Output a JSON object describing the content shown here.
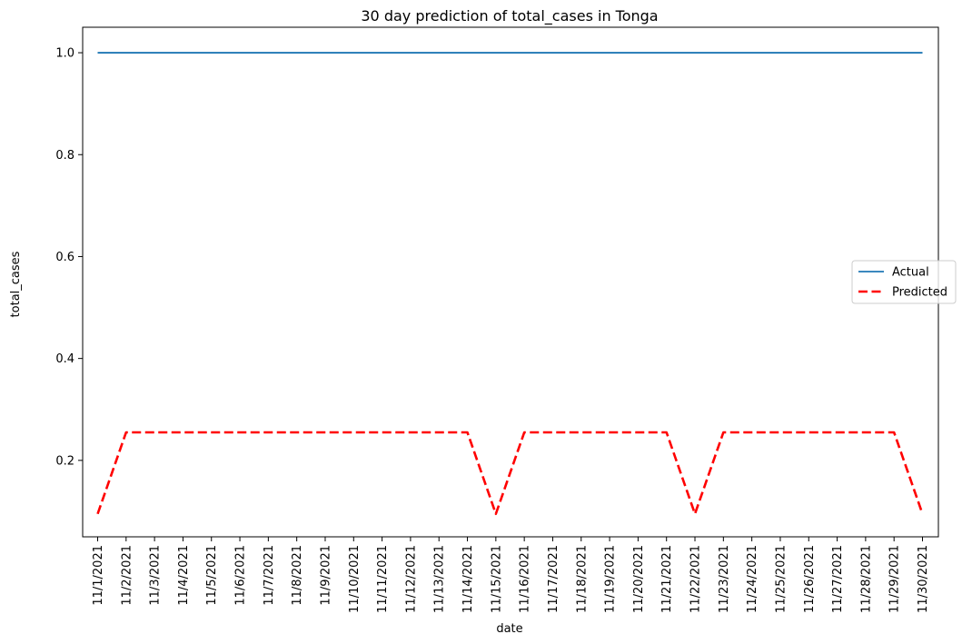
{
  "chart_data": {
    "type": "line",
    "title": "30 day prediction of total_cases in Tonga",
    "xlabel": "date",
    "ylabel": "total_cases",
    "x": [
      "11/1/2021",
      "11/2/2021",
      "11/3/2021",
      "11/4/2021",
      "11/5/2021",
      "11/6/2021",
      "11/7/2021",
      "11/8/2021",
      "11/9/2021",
      "11/10/2021",
      "11/11/2021",
      "11/12/2021",
      "11/13/2021",
      "11/14/2021",
      "11/15/2021",
      "11/16/2021",
      "11/17/2021",
      "11/18/2021",
      "11/19/2021",
      "11/20/2021",
      "11/21/2021",
      "11/22/2021",
      "11/23/2021",
      "11/24/2021",
      "11/25/2021",
      "11/26/2021",
      "11/27/2021",
      "11/28/2021",
      "11/29/2021",
      "11/30/2021"
    ],
    "ylim": [
      0.05,
      1.05
    ],
    "yticks": [
      0.2,
      0.4,
      0.6,
      0.8,
      1.0
    ],
    "ytick_labels": [
      "0.2",
      "0.4",
      "0.6",
      "0.8",
      "1.0"
    ],
    "grid": false,
    "legend_position": "center-right",
    "series": [
      {
        "name": "Actual",
        "color": "#1f77b4",
        "style": "solid",
        "values": [
          1,
          1,
          1,
          1,
          1,
          1,
          1,
          1,
          1,
          1,
          1,
          1,
          1,
          1,
          1,
          1,
          1,
          1,
          1,
          1,
          1,
          1,
          1,
          1,
          1,
          1,
          1,
          1,
          1,
          1
        ]
      },
      {
        "name": "Predicted",
        "color": "#ff0000",
        "style": "dashed",
        "values": [
          0.095,
          0.255,
          0.255,
          0.255,
          0.255,
          0.255,
          0.255,
          0.255,
          0.255,
          0.255,
          0.255,
          0.255,
          0.255,
          0.255,
          0.095,
          0.255,
          0.255,
          0.255,
          0.255,
          0.255,
          0.255,
          0.095,
          0.255,
          0.255,
          0.255,
          0.255,
          0.255,
          0.255,
          0.255,
          0.095
        ]
      }
    ]
  }
}
